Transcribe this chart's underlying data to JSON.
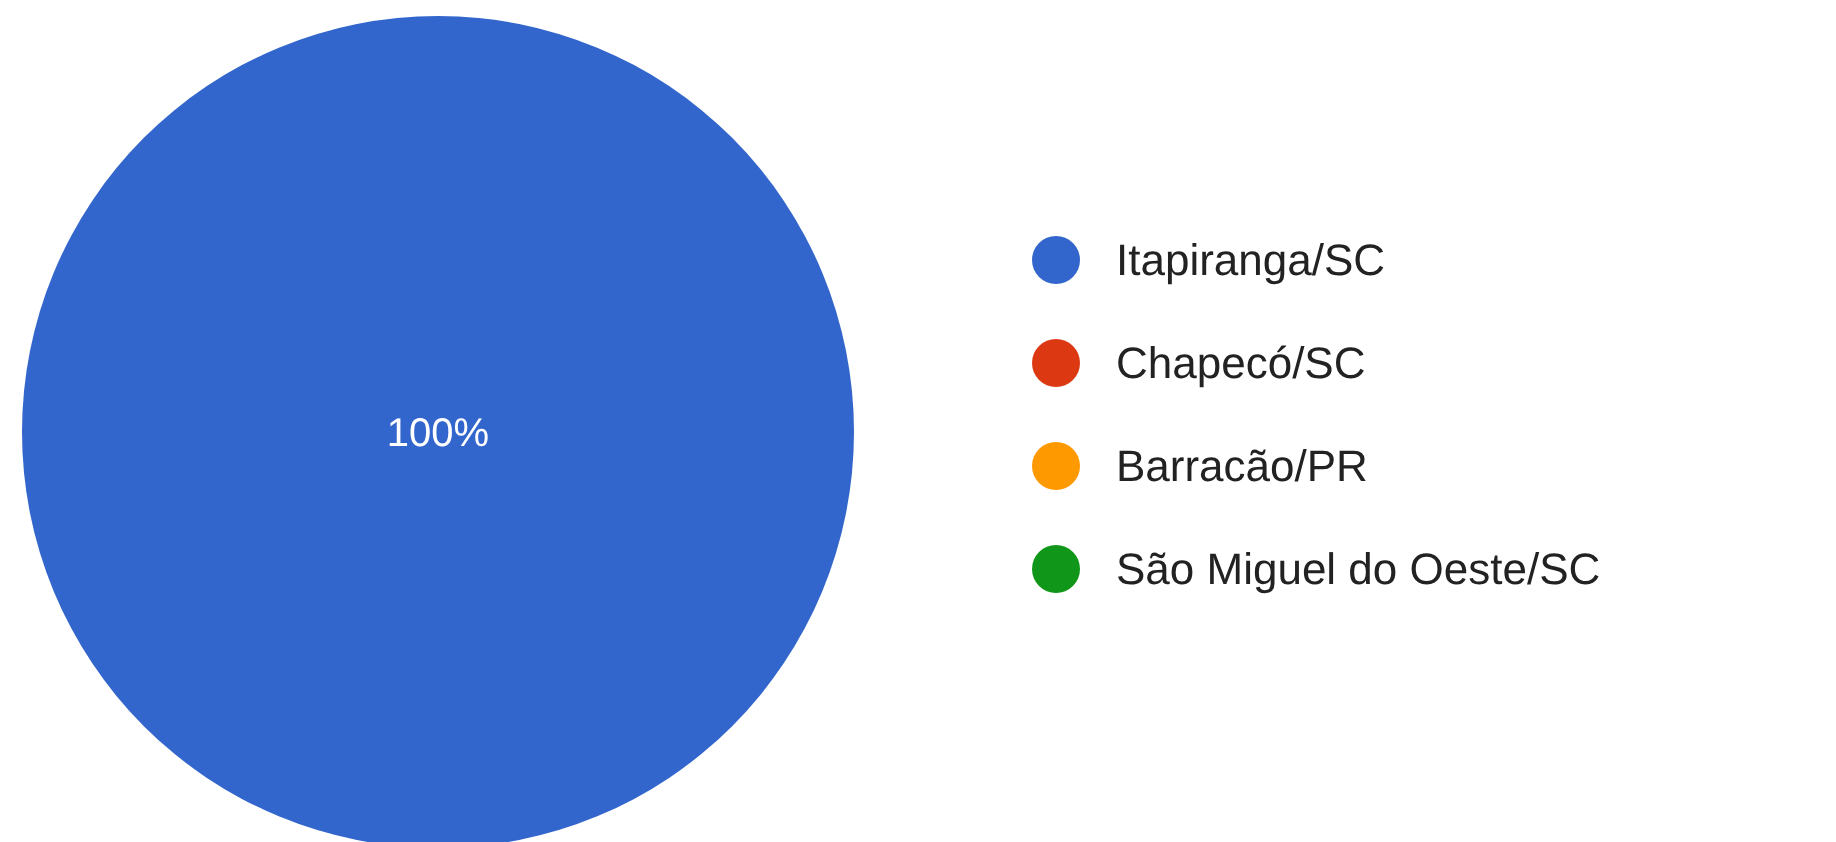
{
  "chart_data": {
    "type": "pie",
    "categories": [
      "Itapiranga/SC",
      "Chapecó/SC",
      "Barracão/PR",
      "São Miguel do Oeste/SC"
    ],
    "values": [
      100,
      0,
      0,
      0
    ],
    "colors": [
      "#3366cc",
      "#dc3912",
      "#ff9900",
      "#109618"
    ],
    "value_labels": [
      "100%",
      null,
      null,
      null
    ],
    "legend": "right"
  }
}
